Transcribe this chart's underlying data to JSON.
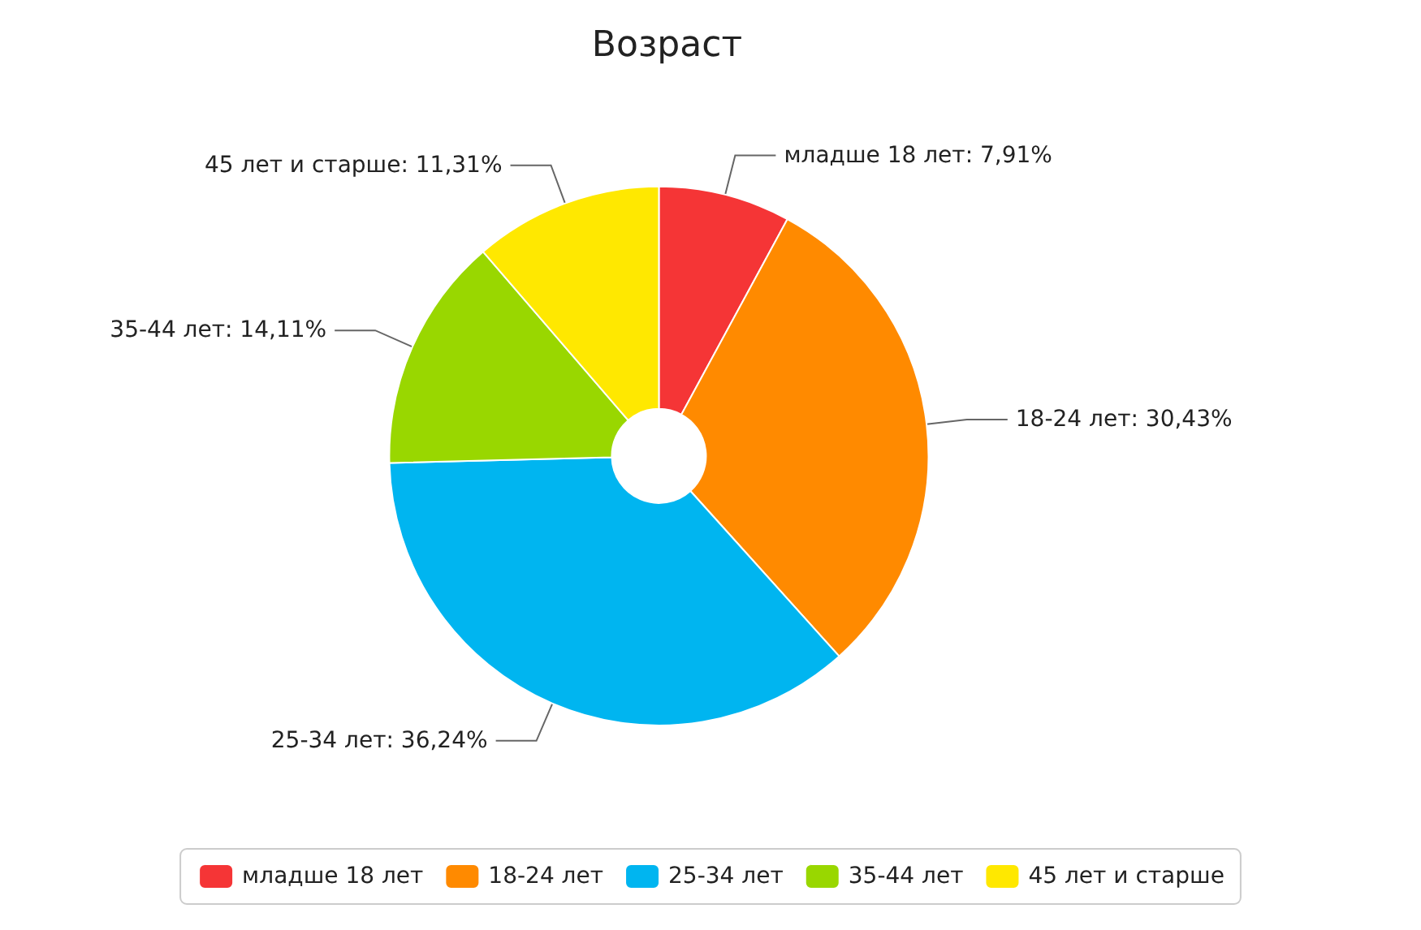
{
  "chart_data": {
    "type": "donut",
    "title": "Возраст",
    "categories": [
      "младше 18 лет",
      "18-24 лет",
      "25-34 лет",
      "35-44 лет",
      "45 лет и старше"
    ],
    "values": [
      7.91,
      30.43,
      36.24,
      14.11,
      11.31
    ],
    "value_labels": [
      "младше 18 лет: 7,91%",
      "18-24 лет: 30,43%",
      "25-34 лет: 36,24%",
      "35-44 лет: 14,11%",
      "45 лет и старше: 11,31%"
    ],
    "colors": [
      "#f53536",
      "#ff8a00",
      "#00b5f0",
      "#99d700",
      "#ffe800"
    ],
    "legend": "bottom"
  }
}
